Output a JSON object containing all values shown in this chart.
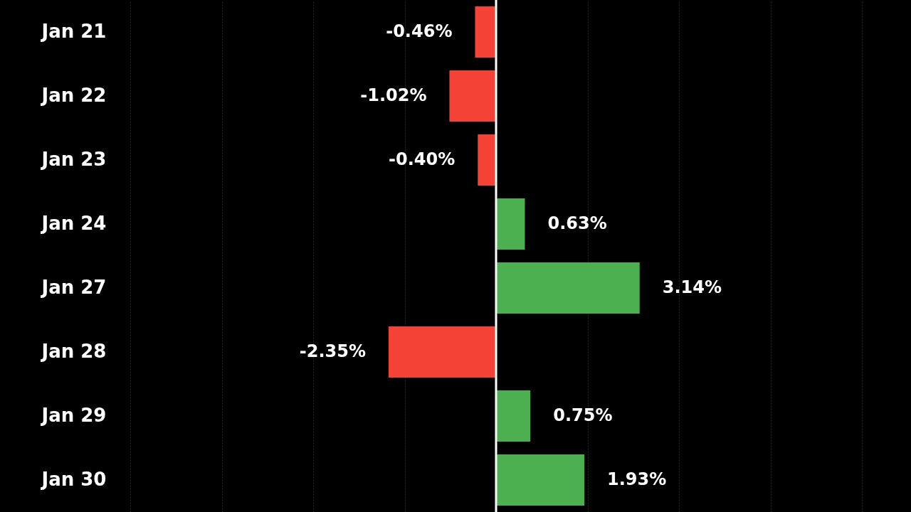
{
  "chart_data": {
    "type": "bar",
    "orientation": "horizontal",
    "categories": [
      "Jan 21",
      "Jan 22",
      "Jan 23",
      "Jan 24",
      "Jan 27",
      "Jan 28",
      "Jan 29",
      "Jan 30"
    ],
    "values": [
      -0.46,
      -1.02,
      -0.4,
      0.63,
      3.14,
      -2.35,
      0.75,
      1.93
    ],
    "colors": [
      "#f44336",
      "#f44336",
      "#f44336",
      "#4caf50",
      "#4caf50",
      "#f44336",
      "#4caf50",
      "#4caf50"
    ],
    "value_labels": [
      "-0.46%",
      "-1.02%",
      "-0.40%",
      "0.63%",
      "3.14%",
      "-2.35%",
      "0.75%",
      "1.93%"
    ],
    "xlim": [
      -8,
      8
    ],
    "xticks": [
      {
        "value": -8,
        "label": null
      },
      {
        "value": -6,
        "label": null
      },
      {
        "value": -4,
        "label": null
      },
      {
        "value": -2,
        "label": null
      },
      {
        "value": 0,
        "label": null
      },
      {
        "value": 2,
        "label": null
      },
      {
        "value": 4,
        "label": null
      },
      {
        "value": 6,
        "label": null
      },
      {
        "value": 8,
        "label": null
      }
    ],
    "tick_labels": "y",
    "grid": "x",
    "ref_lines": [
      {
        "axis": "x",
        "value": 0,
        "color": "#ffffff"
      }
    ]
  }
}
